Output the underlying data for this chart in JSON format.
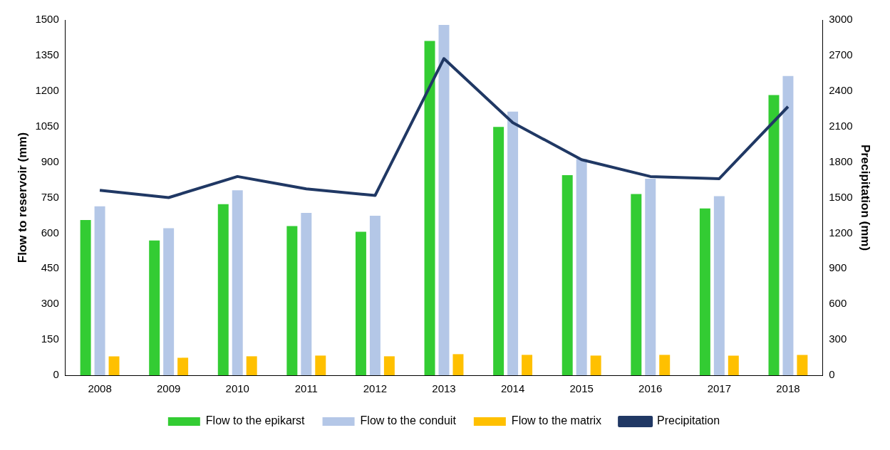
{
  "chart_data": {
    "type": "bar",
    "categories": [
      "2008",
      "2009",
      "2010",
      "2011",
      "2012",
      "2013",
      "2014",
      "2015",
      "2016",
      "2017",
      "2018"
    ],
    "ylabel": "Flow to reservoir (mm)",
    "y2label": "Precipitation (mm)",
    "ylim": [
      0,
      1500
    ],
    "yticks": [
      0,
      150,
      300,
      450,
      600,
      750,
      900,
      1050,
      1200,
      1350,
      1500
    ],
    "y2lim": [
      0,
      3000
    ],
    "y2ticks": [
      0,
      300,
      600,
      900,
      1200,
      1500,
      1800,
      2100,
      2400,
      2700,
      3000
    ],
    "grid": false,
    "legend": "bottom",
    "series": [
      {
        "name": "Flow to the epikarst",
        "color": "#33cc33",
        "values": [
          655,
          569,
          722,
          630,
          606,
          1411,
          1048,
          845,
          765,
          704,
          1183
        ]
      },
      {
        "name": "Flow to the conduit",
        "color": "#b4c7e7",
        "values": [
          713,
          621,
          781,
          685,
          673,
          1479,
          1113,
          913,
          830,
          756,
          1263
        ]
      },
      {
        "name": "Flow to the matrix",
        "color": "#ffc000",
        "values": [
          80,
          74,
          80,
          83,
          80,
          89,
          86,
          83,
          86,
          83,
          86
        ]
      },
      {
        "name": "Precipitation",
        "type": "line",
        "axis": "y2",
        "color": "#203864",
        "marker": "none",
        "values": [
          1561,
          1500,
          1678,
          1574,
          1518,
          2674,
          2133,
          1820,
          1678,
          1660,
          2268
        ]
      }
    ]
  }
}
